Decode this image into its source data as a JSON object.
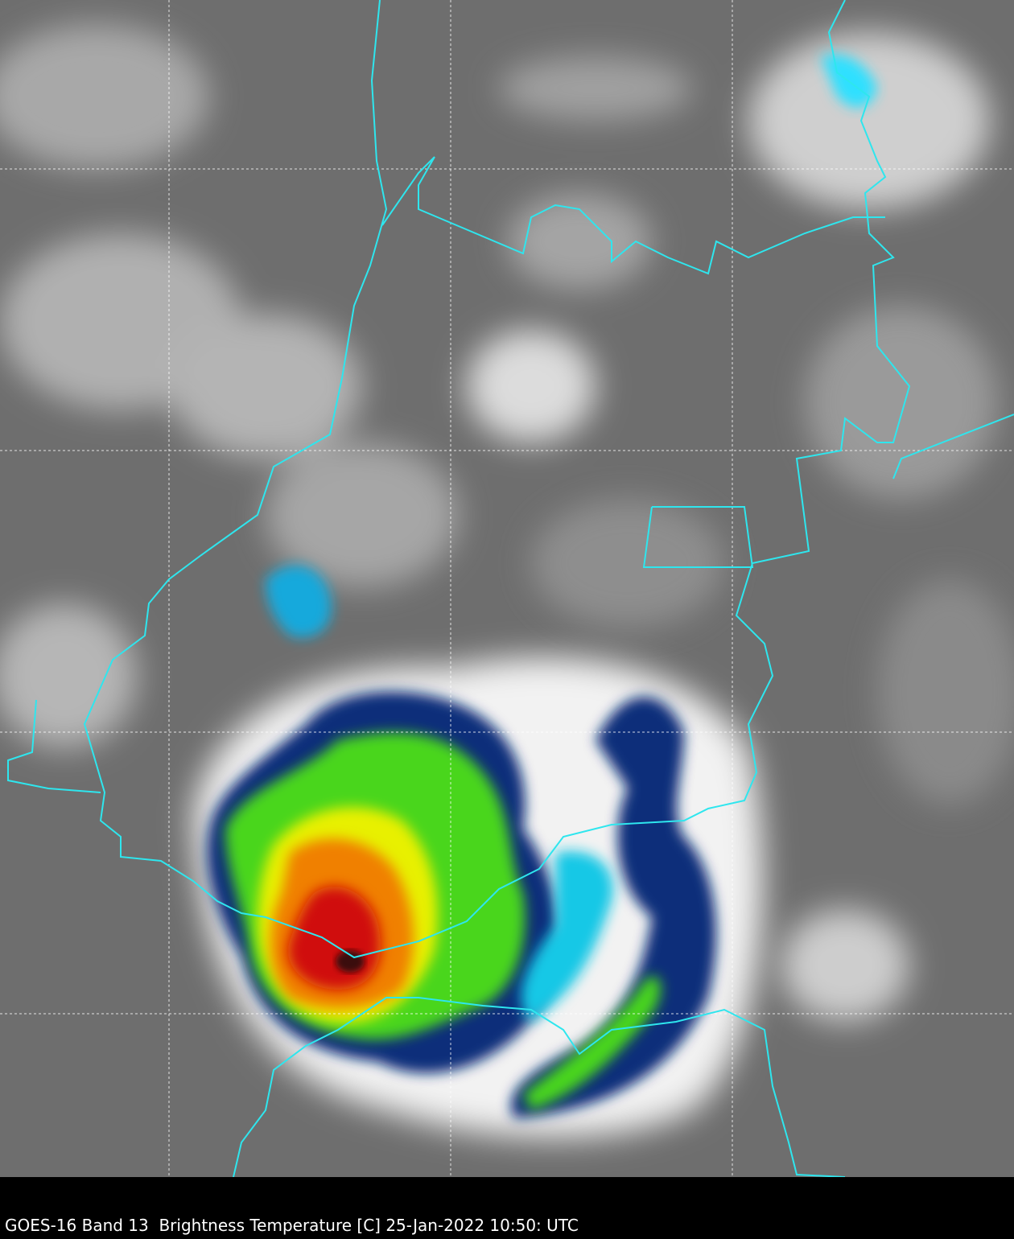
{
  "caption": "GOES-16 Band 13  Brightness Temperature [C] 25-Jan-2022 10:50: UTC"
}
